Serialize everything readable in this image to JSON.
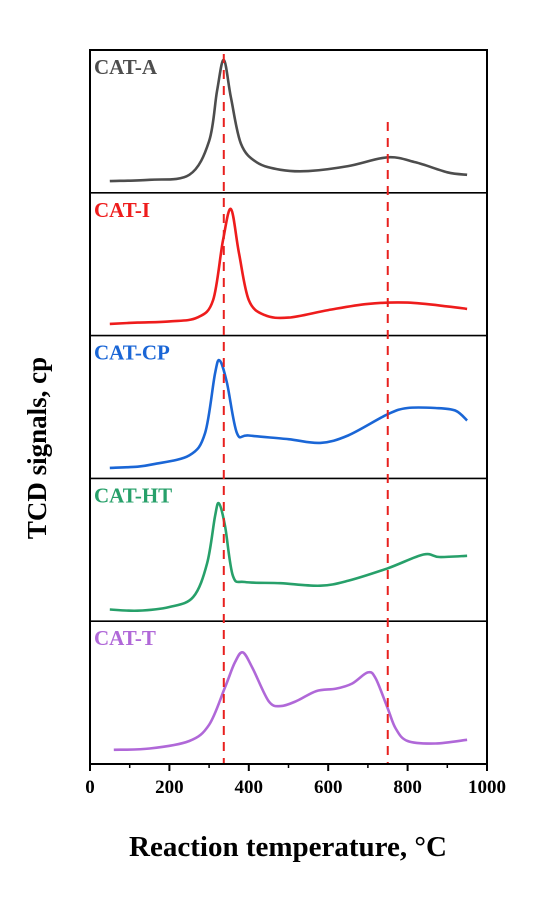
{
  "chart_data": {
    "type": "line",
    "xlabel": "Reaction temperature, °C",
    "ylabel": "TCD signals, cp",
    "xlim": [
      0,
      1000
    ],
    "xticks": [
      "0",
      "200",
      "400",
      "600",
      "800",
      "1000"
    ],
    "y_ticks_shown": false,
    "grid": false,
    "reference_lines_x": [
      337,
      750
    ],
    "reference_line_color": "#e8201e",
    "series": [
      {
        "name": "CAT-A",
        "color": "#4d4d4d",
        "points": [
          [
            50,
            0.03
          ],
          [
            150,
            0.04
          ],
          [
            250,
            0.08
          ],
          [
            300,
            0.35
          ],
          [
            320,
            0.75
          ],
          [
            337,
            1.0
          ],
          [
            355,
            0.7
          ],
          [
            380,
            0.33
          ],
          [
            420,
            0.18
          ],
          [
            480,
            0.12
          ],
          [
            550,
            0.11
          ],
          [
            650,
            0.15
          ],
          [
            750,
            0.22
          ],
          [
            820,
            0.18
          ],
          [
            900,
            0.1
          ],
          [
            950,
            0.08
          ]
        ]
      },
      {
        "name": "CAT-I",
        "color": "#ee1c1c",
        "points": [
          [
            50,
            0.03
          ],
          [
            120,
            0.04
          ],
          [
            200,
            0.05
          ],
          [
            270,
            0.08
          ],
          [
            310,
            0.22
          ],
          [
            335,
            0.7
          ],
          [
            355,
            0.95
          ],
          [
            375,
            0.6
          ],
          [
            400,
            0.22
          ],
          [
            440,
            0.1
          ],
          [
            500,
            0.08
          ],
          [
            600,
            0.14
          ],
          [
            700,
            0.19
          ],
          [
            800,
            0.2
          ],
          [
            900,
            0.17
          ],
          [
            950,
            0.15
          ]
        ]
      },
      {
        "name": "CAT-CP",
        "color": "#1a66d6",
        "points": [
          [
            50,
            0.02
          ],
          [
            120,
            0.03
          ],
          [
            160,
            0.05
          ],
          [
            250,
            0.12
          ],
          [
            290,
            0.3
          ],
          [
            315,
            0.78
          ],
          [
            327,
            0.88
          ],
          [
            345,
            0.7
          ],
          [
            370,
            0.3
          ],
          [
            400,
            0.28
          ],
          [
            500,
            0.25
          ],
          [
            580,
            0.22
          ],
          [
            650,
            0.28
          ],
          [
            750,
            0.45
          ],
          [
            800,
            0.5
          ],
          [
            870,
            0.5
          ],
          [
            920,
            0.48
          ],
          [
            950,
            0.4
          ]
        ]
      },
      {
        "name": "CAT-HT",
        "color": "#27a06a",
        "points": [
          [
            50,
            0.03
          ],
          [
            120,
            0.02
          ],
          [
            200,
            0.05
          ],
          [
            260,
            0.13
          ],
          [
            295,
            0.4
          ],
          [
            315,
            0.78
          ],
          [
            325,
            0.88
          ],
          [
            340,
            0.7
          ],
          [
            360,
            0.3
          ],
          [
            390,
            0.25
          ],
          [
            480,
            0.24
          ],
          [
            580,
            0.22
          ],
          [
            650,
            0.26
          ],
          [
            750,
            0.36
          ],
          [
            840,
            0.47
          ],
          [
            880,
            0.45
          ],
          [
            950,
            0.46
          ]
        ]
      },
      {
        "name": "CAT-T",
        "color": "#b068d8",
        "points": [
          [
            60,
            0.05
          ],
          [
            150,
            0.06
          ],
          [
            250,
            0.12
          ],
          [
            300,
            0.25
          ],
          [
            340,
            0.55
          ],
          [
            365,
            0.75
          ],
          [
            385,
            0.83
          ],
          [
            410,
            0.7
          ],
          [
            450,
            0.44
          ],
          [
            480,
            0.4
          ],
          [
            520,
            0.44
          ],
          [
            570,
            0.52
          ],
          [
            620,
            0.54
          ],
          [
            660,
            0.58
          ],
          [
            700,
            0.67
          ],
          [
            720,
            0.62
          ],
          [
            750,
            0.38
          ],
          [
            770,
            0.22
          ],
          [
            800,
            0.12
          ],
          [
            870,
            0.1
          ],
          [
            950,
            0.13
          ]
        ]
      }
    ]
  }
}
